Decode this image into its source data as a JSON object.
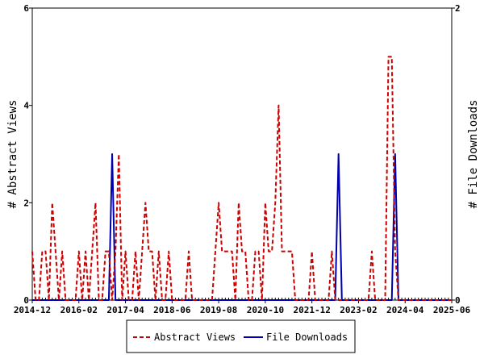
{
  "chart_data": {
    "type": "line",
    "x_tick_labels": [
      "2014-12",
      "2016-02",
      "2017-04",
      "2018-06",
      "2019-08",
      "2020-10",
      "2021-12",
      "2023-02",
      "2024-04",
      "2025-06"
    ],
    "x_range": [
      "2014-12",
      "2025-06"
    ],
    "y_left": {
      "label": "# Abstract Views",
      "ticks": [
        "0",
        "2",
        "4",
        "6"
      ],
      "ylim": [
        0,
        6
      ]
    },
    "y_right": {
      "label": "# File Downloads",
      "ticks": [
        "0",
        "2"
      ],
      "ylim": [
        0,
        2
      ]
    },
    "legend": {
      "position": "bottom-center",
      "entries": [
        "Abstract Views",
        "File Downloads"
      ]
    },
    "grid": false,
    "series": [
      {
        "name": "Abstract Views",
        "axis": "left",
        "color": "#cc0000",
        "dash": "dashed",
        "points": [
          [
            "2014-12",
            1
          ],
          [
            "2015-01",
            0
          ],
          [
            "2015-02",
            0
          ],
          [
            "2015-03",
            1
          ],
          [
            "2015-04",
            1
          ],
          [
            "2015-05",
            0
          ],
          [
            "2015-06",
            2
          ],
          [
            "2015-07",
            1
          ],
          [
            "2015-08",
            0
          ],
          [
            "2015-09",
            1
          ],
          [
            "2015-10",
            0
          ],
          [
            "2015-11",
            0
          ],
          [
            "2015-12",
            0
          ],
          [
            "2016-01",
            0
          ],
          [
            "2016-02",
            1
          ],
          [
            "2016-03",
            0
          ],
          [
            "2016-04",
            1
          ],
          [
            "2016-05",
            0
          ],
          [
            "2016-06",
            1
          ],
          [
            "2016-07",
            2
          ],
          [
            "2016-08",
            0
          ],
          [
            "2016-09",
            0
          ],
          [
            "2016-10",
            1
          ],
          [
            "2016-11",
            1
          ],
          [
            "2016-12",
            0
          ],
          [
            "2017-01",
            1
          ],
          [
            "2017-02",
            3
          ],
          [
            "2017-03",
            0
          ],
          [
            "2017-04",
            1
          ],
          [
            "2017-05",
            0
          ],
          [
            "2017-06",
            0
          ],
          [
            "2017-07",
            1
          ],
          [
            "2017-08",
            0
          ],
          [
            "2017-09",
            1
          ],
          [
            "2017-10",
            2
          ],
          [
            "2017-11",
            1
          ],
          [
            "2017-12",
            1
          ],
          [
            "2018-01",
            0
          ],
          [
            "2018-02",
            1
          ],
          [
            "2018-03",
            0
          ],
          [
            "2018-04",
            0
          ],
          [
            "2018-05",
            1
          ],
          [
            "2018-06",
            0
          ],
          [
            "2018-07",
            0
          ],
          [
            "2018-08",
            0
          ],
          [
            "2018-09",
            0
          ],
          [
            "2018-10",
            0
          ],
          [
            "2018-11",
            1
          ],
          [
            "2018-12",
            0
          ],
          [
            "2019-01",
            0
          ],
          [
            "2019-02",
            0
          ],
          [
            "2019-03",
            0
          ],
          [
            "2019-04",
            0
          ],
          [
            "2019-05",
            0
          ],
          [
            "2019-06",
            0
          ],
          [
            "2019-07",
            1
          ],
          [
            "2019-08",
            2
          ],
          [
            "2019-09",
            1
          ],
          [
            "2019-10",
            1
          ],
          [
            "2019-11",
            1
          ],
          [
            "2019-12",
            1
          ],
          [
            "2020-01",
            0
          ],
          [
            "2020-02",
            2
          ],
          [
            "2020-03",
            1
          ],
          [
            "2020-04",
            1
          ],
          [
            "2020-05",
            0
          ],
          [
            "2020-06",
            0
          ],
          [
            "2020-07",
            1
          ],
          [
            "2020-08",
            1
          ],
          [
            "2020-09",
            0
          ],
          [
            "2020-10",
            2
          ],
          [
            "2020-11",
            1
          ],
          [
            "2020-12",
            1
          ],
          [
            "2021-01",
            2
          ],
          [
            "2021-02",
            4
          ],
          [
            "2021-03",
            1
          ],
          [
            "2021-04",
            1
          ],
          [
            "2021-05",
            1
          ],
          [
            "2021-06",
            1
          ],
          [
            "2021-07",
            0
          ],
          [
            "2021-08",
            0
          ],
          [
            "2021-09",
            0
          ],
          [
            "2021-10",
            0
          ],
          [
            "2021-11",
            0
          ],
          [
            "2021-12",
            1
          ],
          [
            "2022-01",
            0
          ],
          [
            "2022-02",
            0
          ],
          [
            "2022-03",
            0
          ],
          [
            "2022-04",
            0
          ],
          [
            "2022-05",
            0
          ],
          [
            "2022-06",
            1
          ],
          [
            "2022-07",
            0
          ],
          [
            "2022-08",
            0
          ],
          [
            "2022-09",
            0
          ],
          [
            "2022-10",
            0
          ],
          [
            "2022-11",
            0
          ],
          [
            "2022-12",
            0
          ],
          [
            "2023-01",
            0
          ],
          [
            "2023-02",
            0
          ],
          [
            "2023-03",
            0
          ],
          [
            "2023-04",
            0
          ],
          [
            "2023-05",
            0
          ],
          [
            "2023-06",
            1
          ],
          [
            "2023-07",
            0
          ],
          [
            "2023-08",
            0
          ],
          [
            "2023-09",
            0
          ],
          [
            "2023-10",
            0
          ],
          [
            "2023-11",
            5
          ],
          [
            "2023-12",
            5
          ],
          [
            "2024-01",
            1
          ],
          [
            "2024-02",
            0
          ],
          [
            "2024-03",
            0
          ],
          [
            "2024-04",
            0
          ],
          [
            "2024-05",
            0
          ],
          [
            "2024-06",
            0
          ],
          [
            "2024-07",
            0
          ],
          [
            "2024-08",
            0
          ],
          [
            "2024-09",
            0
          ],
          [
            "2024-10",
            0
          ],
          [
            "2024-11",
            0
          ],
          [
            "2024-12",
            0
          ],
          [
            "2025-01",
            0
          ],
          [
            "2025-02",
            0
          ],
          [
            "2025-03",
            0
          ],
          [
            "2025-04",
            0
          ],
          [
            "2025-05",
            0
          ],
          [
            "2025-06",
            0
          ]
        ]
      },
      {
        "name": "File Downloads",
        "axis": "right",
        "color": "#0000aa",
        "dash": "solid",
        "points": [
          [
            "2014-12",
            0
          ],
          [
            "2016-11",
            0
          ],
          [
            "2016-12",
            1
          ],
          [
            "2017-01",
            0
          ],
          [
            "2017-02",
            0
          ],
          [
            "2022-07",
            0
          ],
          [
            "2022-08",
            1
          ],
          [
            "2022-09",
            0
          ],
          [
            "2023-12",
            0
          ],
          [
            "2024-01",
            1
          ],
          [
            "2024-02",
            0
          ],
          [
            "2025-06",
            0
          ]
        ]
      }
    ]
  }
}
